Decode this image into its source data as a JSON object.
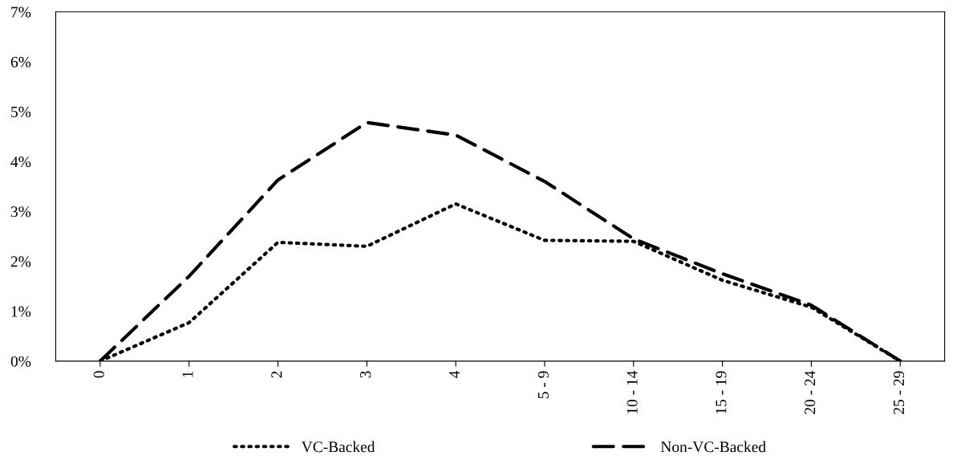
{
  "chart_data": {
    "type": "line",
    "categories": [
      "0",
      "1",
      "2",
      "3",
      "4",
      "5 - 9",
      "10 - 14",
      "15 - 19",
      "20 - 24",
      "25 - 29"
    ],
    "series": [
      {
        "name": "VC-Backed",
        "color": "#000000",
        "line_style": "dotted",
        "values": [
          0.0,
          0.77,
          2.38,
          2.3,
          3.15,
          2.42,
          2.4,
          1.62,
          1.08,
          0.0
        ]
      },
      {
        "name": "Non-VC-Backed",
        "color": "#000000",
        "line_style": "dashed",
        "values": [
          0.0,
          1.7,
          3.63,
          4.78,
          4.53,
          3.6,
          2.45,
          1.75,
          1.12,
          0.0
        ]
      }
    ],
    "ylim": [
      0,
      7
    ],
    "yticks": [
      {
        "value": 0,
        "label": "0%"
      },
      {
        "value": 1,
        "label": "1%"
      },
      {
        "value": 2,
        "label": "2%"
      },
      {
        "value": 3,
        "label": "3%"
      },
      {
        "value": 4,
        "label": "4%"
      },
      {
        "value": 5,
        "label": "5%"
      },
      {
        "value": 6,
        "label": "6%"
      },
      {
        "value": 7,
        "label": "7%"
      }
    ],
    "grid": false,
    "legend": "bottom"
  }
}
